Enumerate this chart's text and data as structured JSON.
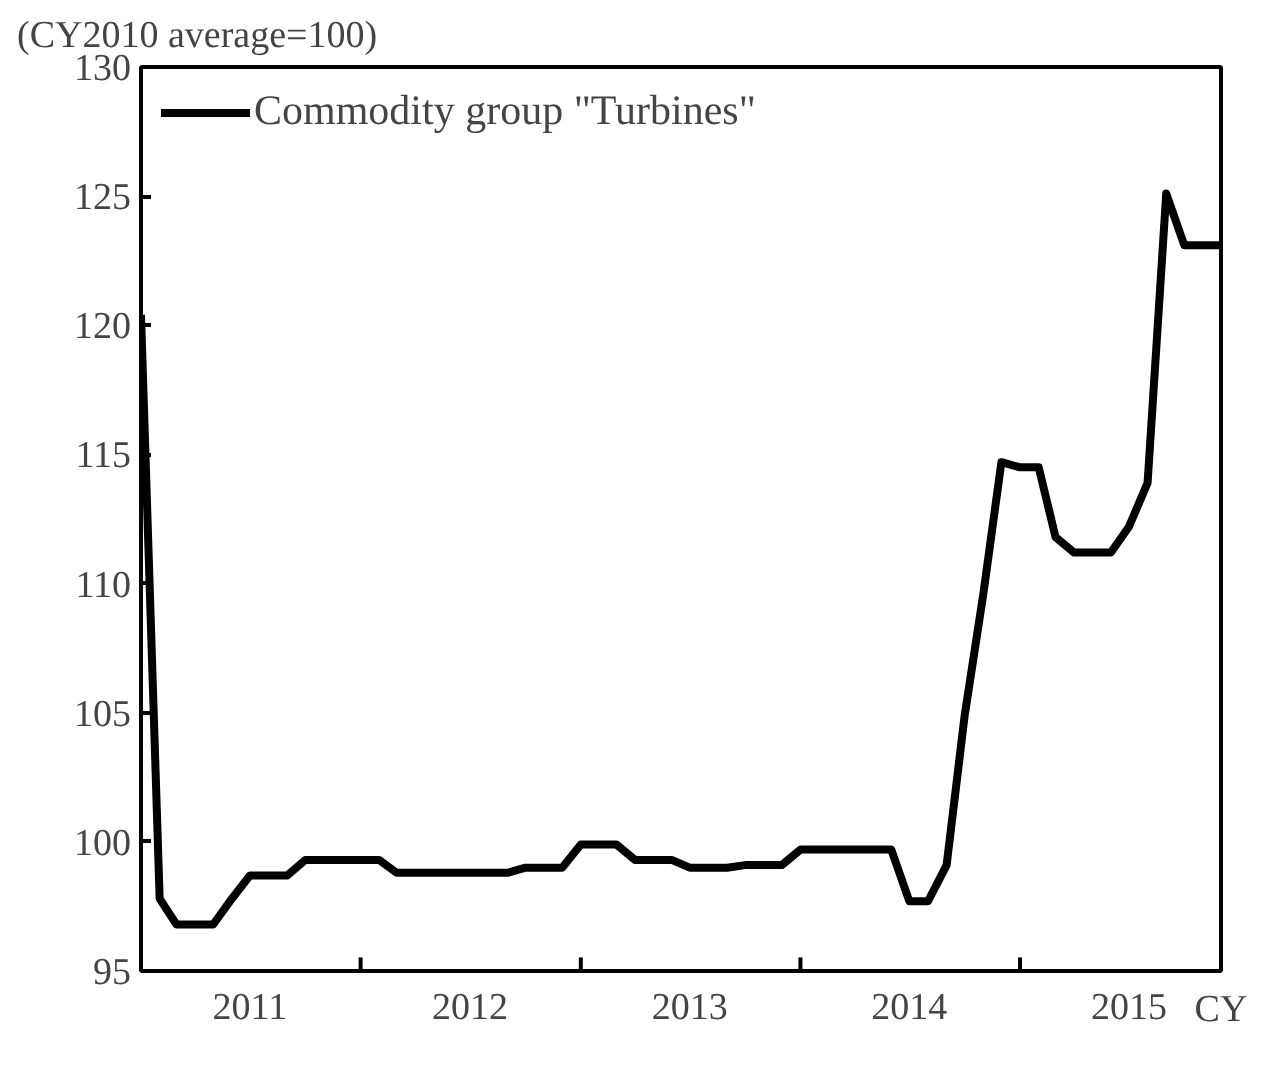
{
  "chart_data": {
    "type": "line",
    "ylabel": "(CY2010 average=100)",
    "xlabel": "CY",
    "x": [
      "2011-01",
      "2011-02",
      "2011-03",
      "2011-04",
      "2011-05",
      "2011-06",
      "2011-07",
      "2011-08",
      "2011-09",
      "2011-10",
      "2011-11",
      "2011-12",
      "2012-01",
      "2012-02",
      "2012-03",
      "2012-04",
      "2012-05",
      "2012-06",
      "2012-07",
      "2012-08",
      "2012-09",
      "2012-10",
      "2012-11",
      "2012-12",
      "2013-01",
      "2013-02",
      "2013-03",
      "2013-04",
      "2013-05",
      "2013-06",
      "2013-07",
      "2013-08",
      "2013-09",
      "2013-10",
      "2013-11",
      "2013-12",
      "2014-01",
      "2014-02",
      "2014-03",
      "2014-04",
      "2014-05",
      "2014-06",
      "2014-07",
      "2014-08",
      "2014-09",
      "2014-10",
      "2014-11",
      "2014-12",
      "2015-01",
      "2015-02",
      "2015-03",
      "2015-04",
      "2015-05",
      "2015-06",
      "2015-07",
      "2015-08",
      "2015-09",
      "2015-10",
      "2015-11",
      "2015-12"
    ],
    "series": [
      {
        "name": "Commodity group \"Turbines\"",
        "color": "#000000",
        "values": [
          120.4,
          97.8,
          96.8,
          96.8,
          96.8,
          97.8,
          98.7,
          98.7,
          98.7,
          99.3,
          99.3,
          99.3,
          99.3,
          99.3,
          98.8,
          98.8,
          98.8,
          98.8,
          98.8,
          98.8,
          98.8,
          99.0,
          99.0,
          99.0,
          99.9,
          99.9,
          99.9,
          99.3,
          99.3,
          99.3,
          99.0,
          99.0,
          99.0,
          99.1,
          99.1,
          99.1,
          99.7,
          99.7,
          99.7,
          99.7,
          99.7,
          99.7,
          97.7,
          97.7,
          99.1,
          104.9,
          109.6,
          114.7,
          114.5,
          114.5,
          111.8,
          111.2,
          111.2,
          111.2,
          112.2,
          113.9,
          125.1,
          123.1,
          123.1,
          123.1
        ]
      }
    ],
    "xlim": [
      "2011-01",
      "2015-12"
    ],
    "xticks": [
      {
        "value": "2011-07",
        "label": "2011"
      },
      {
        "value": "2012-01",
        "label": null
      },
      {
        "value": "2012-07",
        "label": "2012"
      },
      {
        "value": "2013-01",
        "label": null
      },
      {
        "value": "2013-07",
        "label": "2013"
      },
      {
        "value": "2014-01",
        "label": null
      },
      {
        "value": "2014-07",
        "label": "2014"
      },
      {
        "value": "2015-01",
        "label": null
      },
      {
        "value": "2015-07",
        "label": "2015"
      }
    ],
    "ylim": [
      95,
      130
    ],
    "yticks": [
      95,
      100,
      105,
      110,
      115,
      120,
      125,
      130
    ],
    "grid": false,
    "legend": "top left",
    "marker": "none",
    "line_style": "solid"
  }
}
